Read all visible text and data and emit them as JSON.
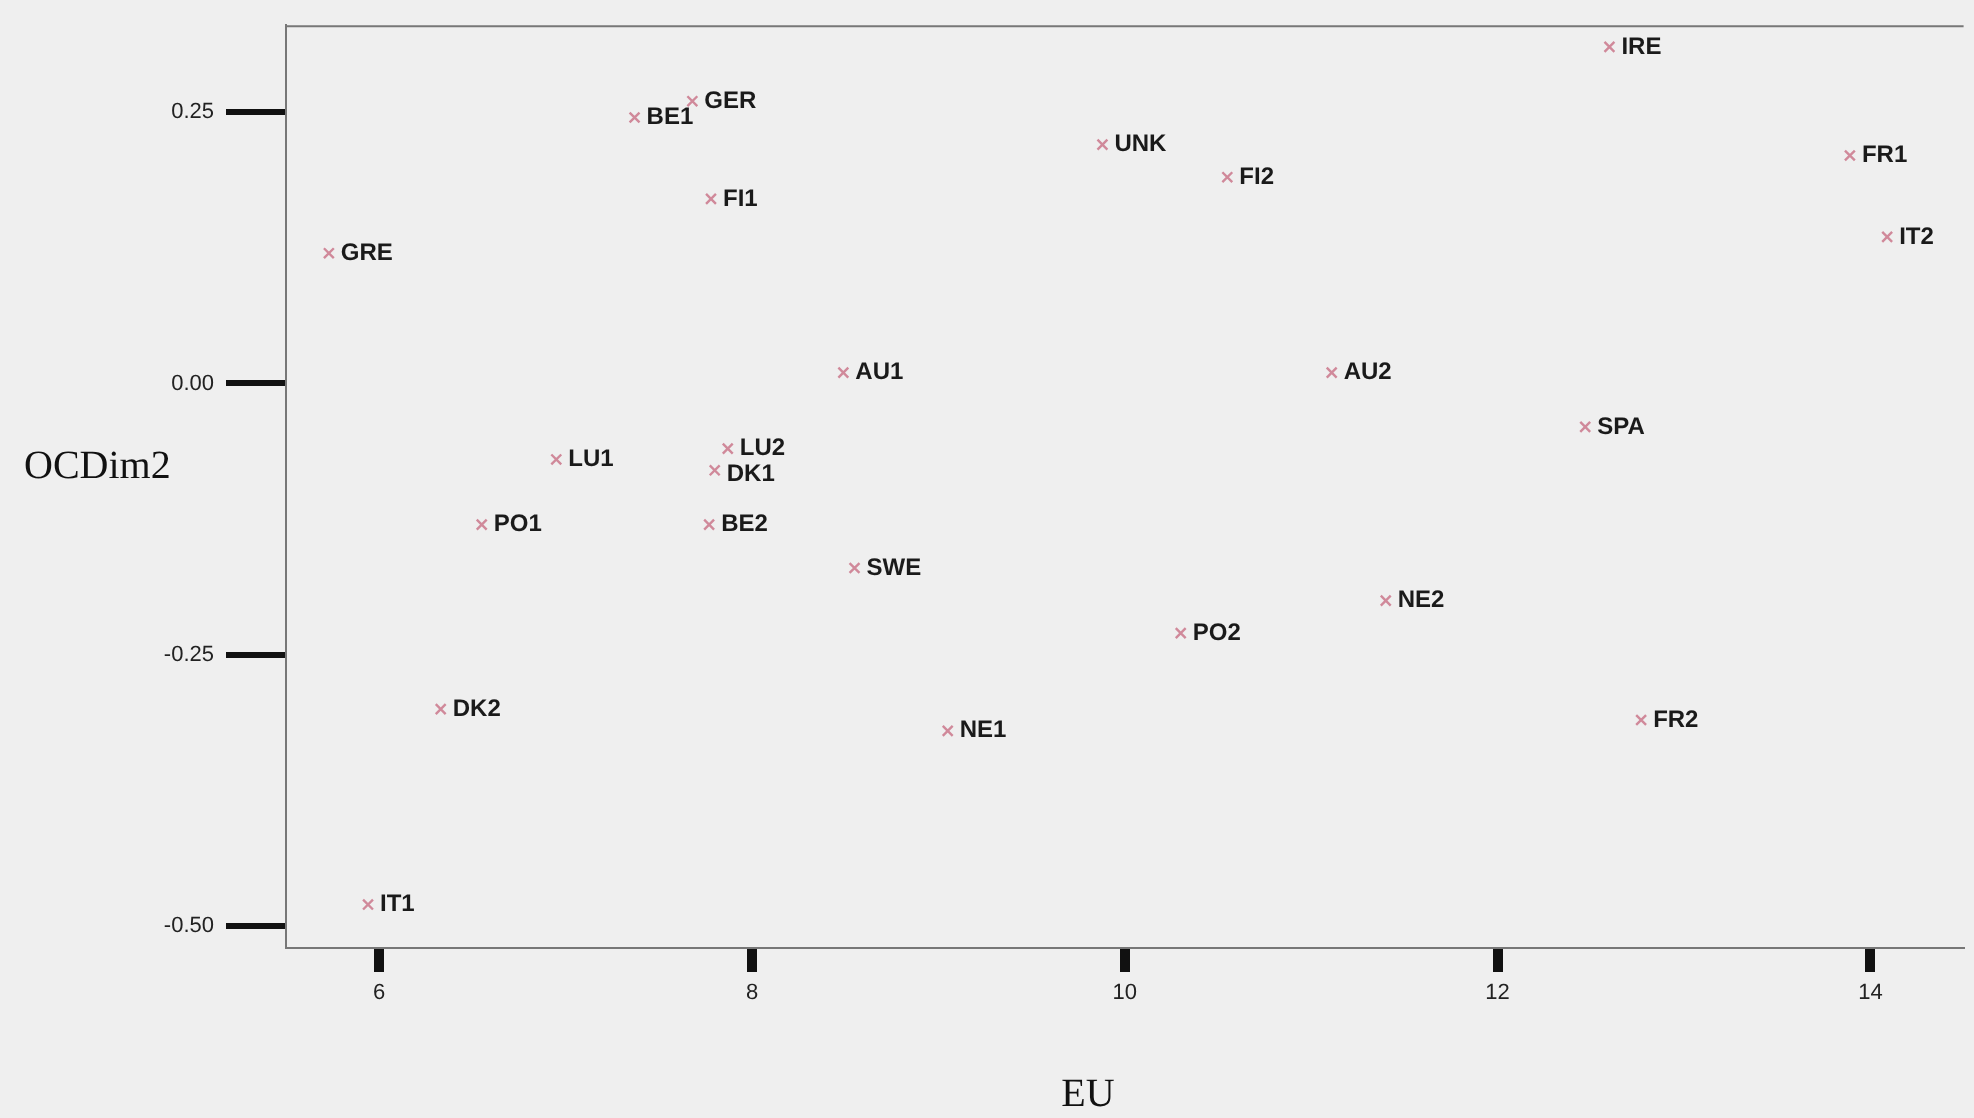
{
  "chart_data": {
    "type": "scatter",
    "xlabel": "EU",
    "ylabel": "OCDim2",
    "x": [
      5.73,
      7.37,
      7.68,
      7.78,
      8.49,
      6.95,
      7.87,
      7.8,
      6.55,
      7.77,
      8.55,
      6.33,
      5.94,
      9.05,
      9.88,
      10.55,
      12.6,
      13.89,
      14.09,
      11.11,
      12.47,
      10.3,
      11.4,
      12.77
    ],
    "values": [
      0.12,
      0.245,
      0.26,
      0.17,
      0.01,
      -0.07,
      -0.06,
      -0.08,
      -0.13,
      -0.13,
      -0.17,
      -0.3,
      -0.48,
      -0.32,
      0.22,
      0.19,
      0.31,
      0.21,
      0.135,
      0.01,
      -0.04,
      -0.23,
      -0.2,
      -0.31
    ],
    "color": "#d0899a",
    "marker": "cross",
    "xlim": [
      5.5,
      14.5
    ],
    "xticks": [
      6,
      8,
      10,
      12,
      14
    ],
    "ylim": [
      -0.52,
      0.33
    ],
    "yticks": [
      {
        "value": -0.5,
        "label": "-0.50"
      },
      {
        "value": -0.25,
        "label": "-0.25"
      },
      {
        "value": 0,
        "label": "0.00"
      },
      {
        "value": 0.25,
        "label": "0.25"
      }
    ],
    "annotations": [
      {
        "text": "GRE",
        "x": 5.73,
        "y": 0.12
      },
      {
        "text": "BE1",
        "x": 7.37,
        "y": 0.245
      },
      {
        "text": "GER",
        "x": 7.68,
        "y": 0.26
      },
      {
        "text": "FI1",
        "x": 7.78,
        "y": 0.17
      },
      {
        "text": "AU1",
        "x": 8.49,
        "y": 0.01
      },
      {
        "text": "LU1",
        "x": 6.95,
        "y": -0.07
      },
      {
        "text": "LU2",
        "x": 7.87,
        "y": -0.06
      },
      {
        "text": "DK1",
        "x": 7.8,
        "y": -0.08
      },
      {
        "text": "PO1",
        "x": 6.55,
        "y": -0.13
      },
      {
        "text": "BE2",
        "x": 7.77,
        "y": -0.13
      },
      {
        "text": "SWE",
        "x": 8.55,
        "y": -0.17
      },
      {
        "text": "DK2",
        "x": 6.33,
        "y": -0.3
      },
      {
        "text": "IT1",
        "x": 5.94,
        "y": -0.48
      },
      {
        "text": "NE1",
        "x": 9.05,
        "y": -0.32
      },
      {
        "text": "UNK",
        "x": 9.88,
        "y": 0.22
      },
      {
        "text": "FI2",
        "x": 10.55,
        "y": 0.19
      },
      {
        "text": "IRE",
        "x": 12.6,
        "y": 0.31
      },
      {
        "text": "FR1",
        "x": 13.89,
        "y": 0.21
      },
      {
        "text": "IT2",
        "x": 14.09,
        "y": 0.135
      },
      {
        "text": "AU2",
        "x": 11.11,
        "y": 0.01
      },
      {
        "text": "SPA",
        "x": 12.47,
        "y": -0.04
      },
      {
        "text": "PO2",
        "x": 10.3,
        "y": -0.23
      },
      {
        "text": "NE2",
        "x": 11.4,
        "y": -0.2
      },
      {
        "text": "FR2",
        "x": 12.77,
        "y": -0.31
      }
    ]
  }
}
